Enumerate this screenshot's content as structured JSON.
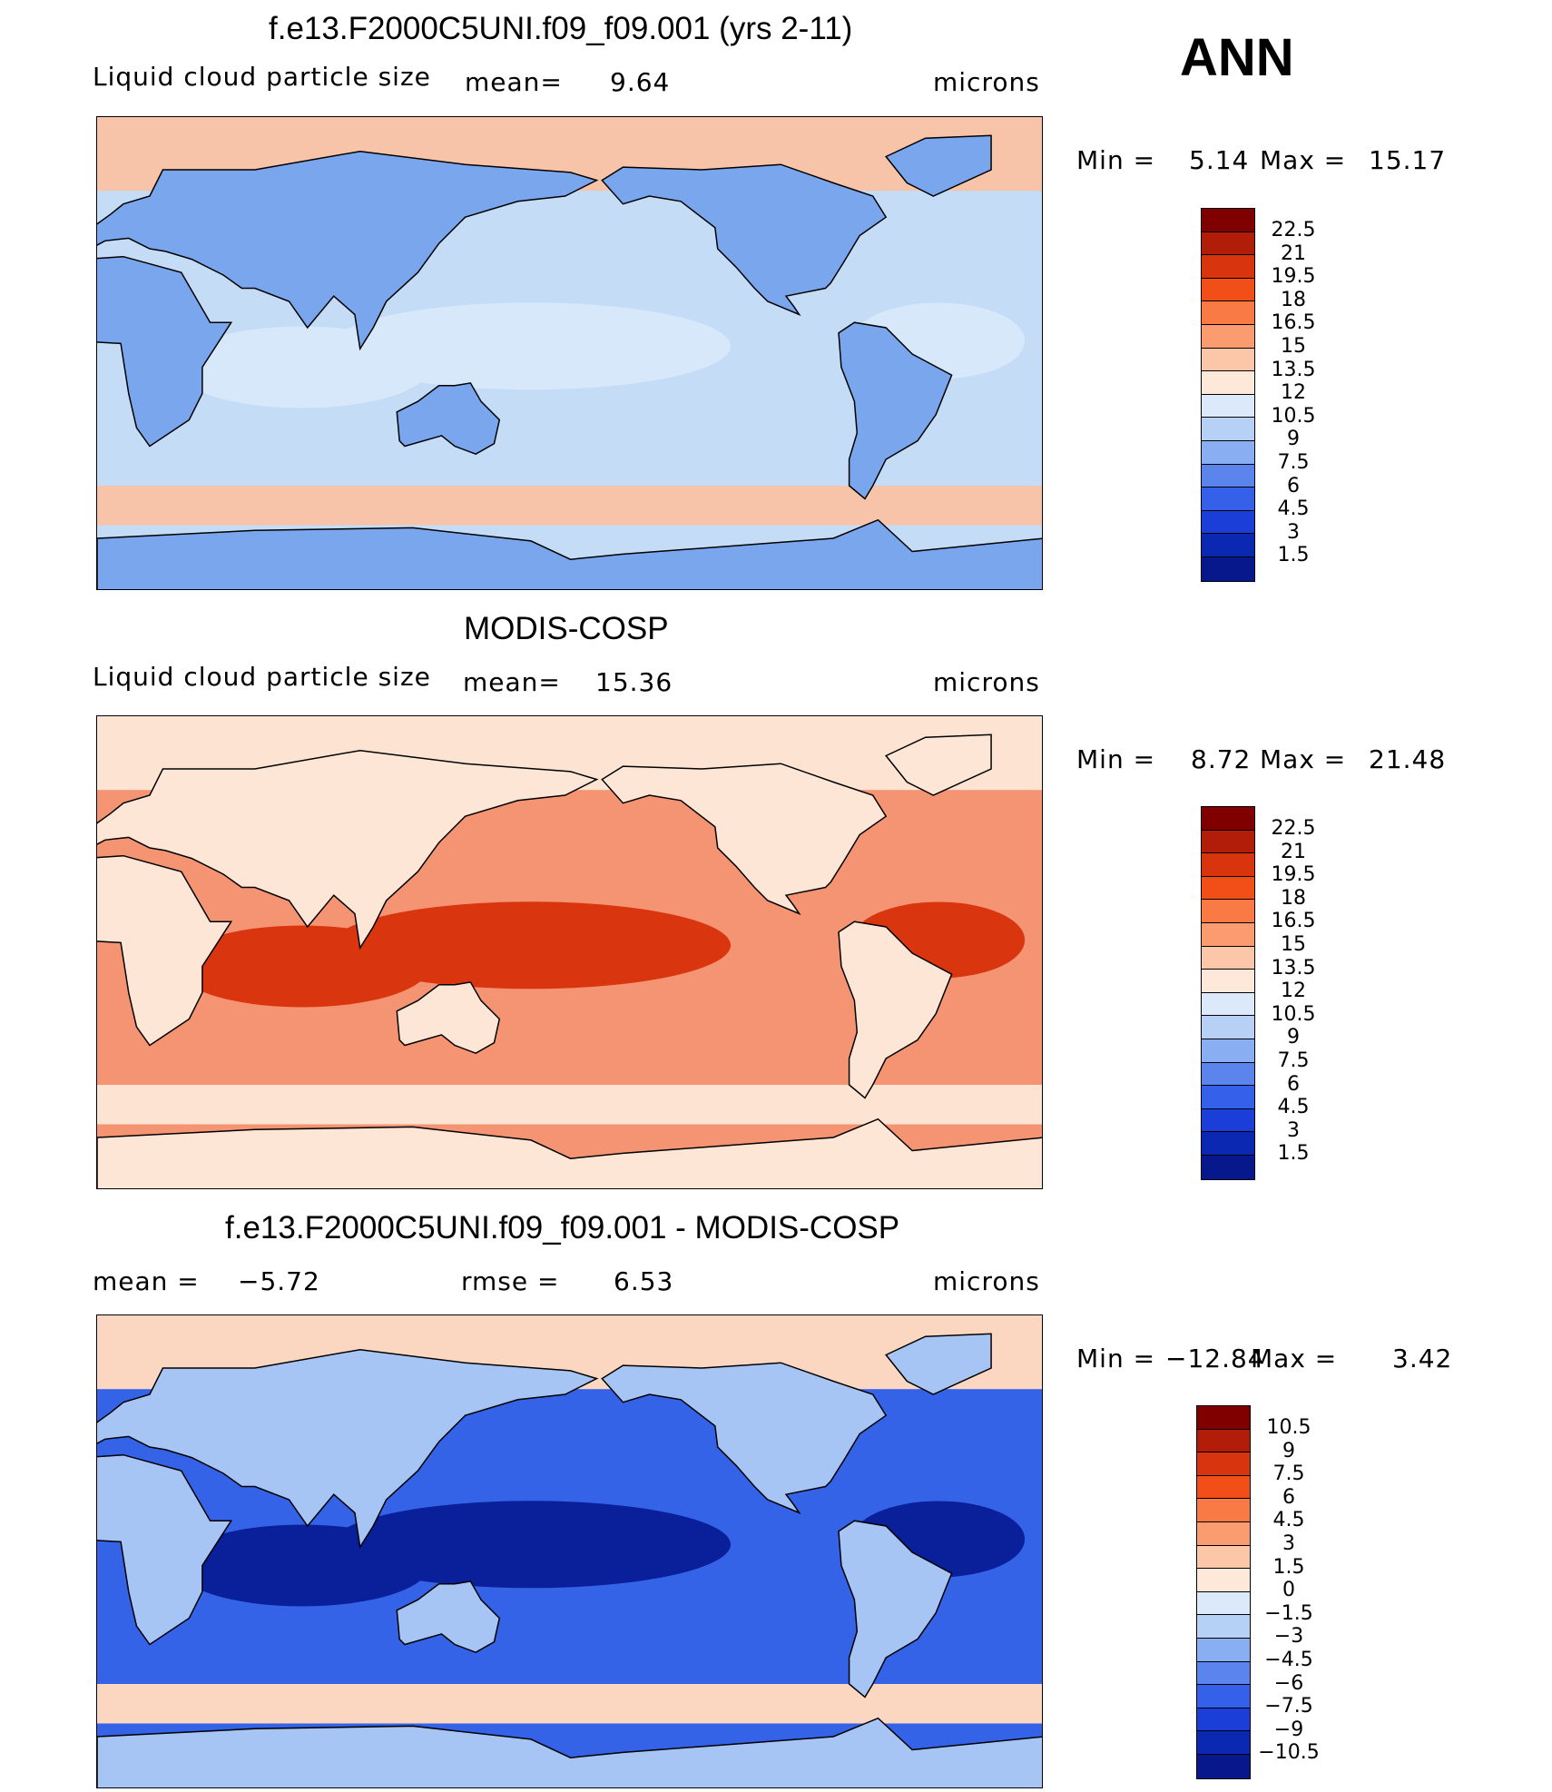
{
  "season": "ANN",
  "panels": [
    {
      "title": "f.e13.F2000C5UNI.f09_f09.001 (yrs 2-11)",
      "left_label": "Liquid cloud particle size",
      "mid_label": "mean=",
      "mid_value": "9.64",
      "units": "microns",
      "minmax": {
        "min_label": "Min  =",
        "min": "5.14",
        "max_label": "Max  =",
        "max": "15.17"
      },
      "colorbar_labels": [
        "22.5",
        "21",
        "19.5",
        "18",
        "16.5",
        "15",
        "13.5",
        "12",
        "10.5",
        "9",
        "7.5",
        "6",
        "4.5",
        "3",
        "1.5"
      ],
      "field_colors": {
        "ocean": "#c4dcf6",
        "land": "#7aa6ee",
        "polar": "#f7c4a9",
        "tropics": "#d7e8fb"
      }
    },
    {
      "title": "MODIS-COSP",
      "left_label": "Liquid cloud particle size",
      "mid_label": "mean=",
      "mid_value": "15.36",
      "units": "microns",
      "minmax": {
        "min_label": "Min  =",
        "min": "8.72",
        "max_label": "Max  =",
        "max": "21.48"
      },
      "colorbar_labels": [
        "22.5",
        "21",
        "19.5",
        "18",
        "16.5",
        "15",
        "13.5",
        "12",
        "10.5",
        "9",
        "7.5",
        "6",
        "4.5",
        "3",
        "1.5"
      ],
      "field_colors": {
        "ocean": "#f59473",
        "land": "#fde6d6",
        "polar": "#fde3d2",
        "tropics": "#d9360f"
      }
    },
    {
      "title": "f.e13.F2000C5UNI.f09_f09.001 - MODIS-COSP",
      "left_label": "mean  =",
      "left_value": "−5.72",
      "mid_label": "rmse  =",
      "mid_value": "6.53",
      "units": "microns",
      "minmax": {
        "min_label": "Min  =",
        "min": "−12.84",
        "max_label": "Max  =",
        "max": "3.42"
      },
      "colorbar_labels": [
        "10.5",
        "9",
        "7.5",
        "6",
        "4.5",
        "3",
        "1.5",
        "0",
        "−1.5",
        "−3",
        "−4.5",
        "−6",
        "−7.5",
        "−9",
        "−10.5"
      ],
      "field_colors": {
        "ocean": "#3563e8",
        "land": "#a6c4f4",
        "polar": "#fbd7c2",
        "tropics": "#0a1f9a"
      }
    }
  ],
  "colorbar_colors": [
    "#800000",
    "#b21d09",
    "#d8350f",
    "#f24f18",
    "#fa7a45",
    "#fb9c70",
    "#fcc6a8",
    "#fde8da",
    "#dbe9fb",
    "#b6d0f6",
    "#89aef1",
    "#5b84ed",
    "#3560e9",
    "#1a3ed7",
    "#0b28b2",
    "#06188c"
  ]
}
